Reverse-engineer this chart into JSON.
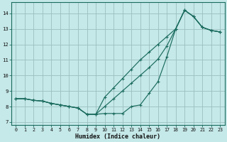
{
  "xlabel": "Humidex (Indice chaleur)",
  "xlim": [
    -0.5,
    23.5
  ],
  "ylim": [
    6.8,
    14.7
  ],
  "bg_color": "#c5e8e8",
  "grid_color": "#9bbfbf",
  "line_color": "#1a6b5e",
  "hours": [
    0,
    1,
    2,
    3,
    4,
    5,
    6,
    7,
    8,
    9,
    10,
    11,
    12,
    13,
    14,
    15,
    16,
    17,
    18,
    19,
    20,
    21,
    22,
    23
  ],
  "line1": [
    8.5,
    8.5,
    8.4,
    8.35,
    8.2,
    8.1,
    8.0,
    7.9,
    7.5,
    7.5,
    7.55,
    7.55,
    7.55,
    8.0,
    8.1,
    8.85,
    9.6,
    11.2,
    13.0,
    14.2,
    13.8,
    13.1,
    12.9,
    12.8
  ],
  "line2": [
    8.5,
    8.5,
    8.4,
    8.35,
    8.2,
    8.1,
    8.0,
    7.9,
    7.5,
    7.5,
    8.0,
    8.5,
    9.0,
    9.5,
    10.0,
    10.5,
    11.05,
    11.9,
    13.0,
    14.2,
    13.8,
    13.1,
    12.9,
    12.8
  ],
  "line3": [
    8.5,
    8.5,
    8.4,
    8.35,
    8.2,
    8.1,
    8.0,
    7.9,
    7.5,
    7.5,
    8.6,
    9.2,
    9.8,
    10.4,
    11.0,
    11.5,
    12.0,
    12.5,
    13.0,
    14.2,
    13.8,
    13.1,
    12.9,
    12.8
  ]
}
